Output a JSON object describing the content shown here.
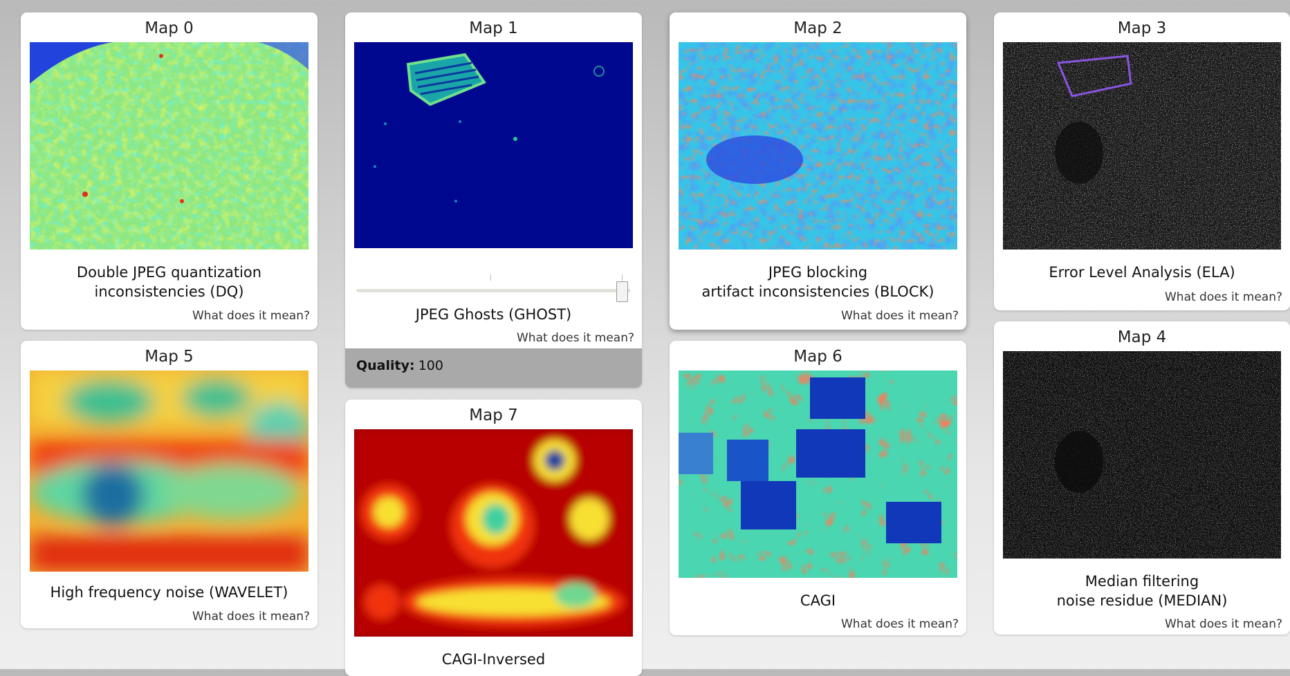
{
  "help_link": "What does it mean?",
  "maps": [
    {
      "id": "map0",
      "title": "Map 0",
      "desc_lines": [
        "Double JPEG quantization",
        "inconsistencies (DQ)"
      ]
    },
    {
      "id": "map1",
      "title": "Map 1",
      "desc_lines": [
        "JPEG Ghosts (GHOST)"
      ],
      "quality_label": "Quality:",
      "quality_value": "100",
      "slider_value": 100
    },
    {
      "id": "map2",
      "title": "Map 2",
      "desc_lines": [
        "JPEG blocking",
        "artifact inconsistencies (BLOCK)"
      ]
    },
    {
      "id": "map3",
      "title": "Map 3",
      "desc_lines": [
        "Error Level Analysis (ELA)"
      ]
    },
    {
      "id": "map4",
      "title": "Map 4",
      "desc_lines": [
        "Median filtering",
        "noise residue (MEDIAN)"
      ]
    },
    {
      "id": "map5",
      "title": "Map 5",
      "desc_lines": [
        "High frequency noise (WAVELET)"
      ]
    },
    {
      "id": "map6",
      "title": "Map 6",
      "desc_lines": [
        "CAGI"
      ]
    },
    {
      "id": "map7",
      "title": "Map 7",
      "desc_lines": [
        "CAGI-Inversed"
      ]
    }
  ]
}
